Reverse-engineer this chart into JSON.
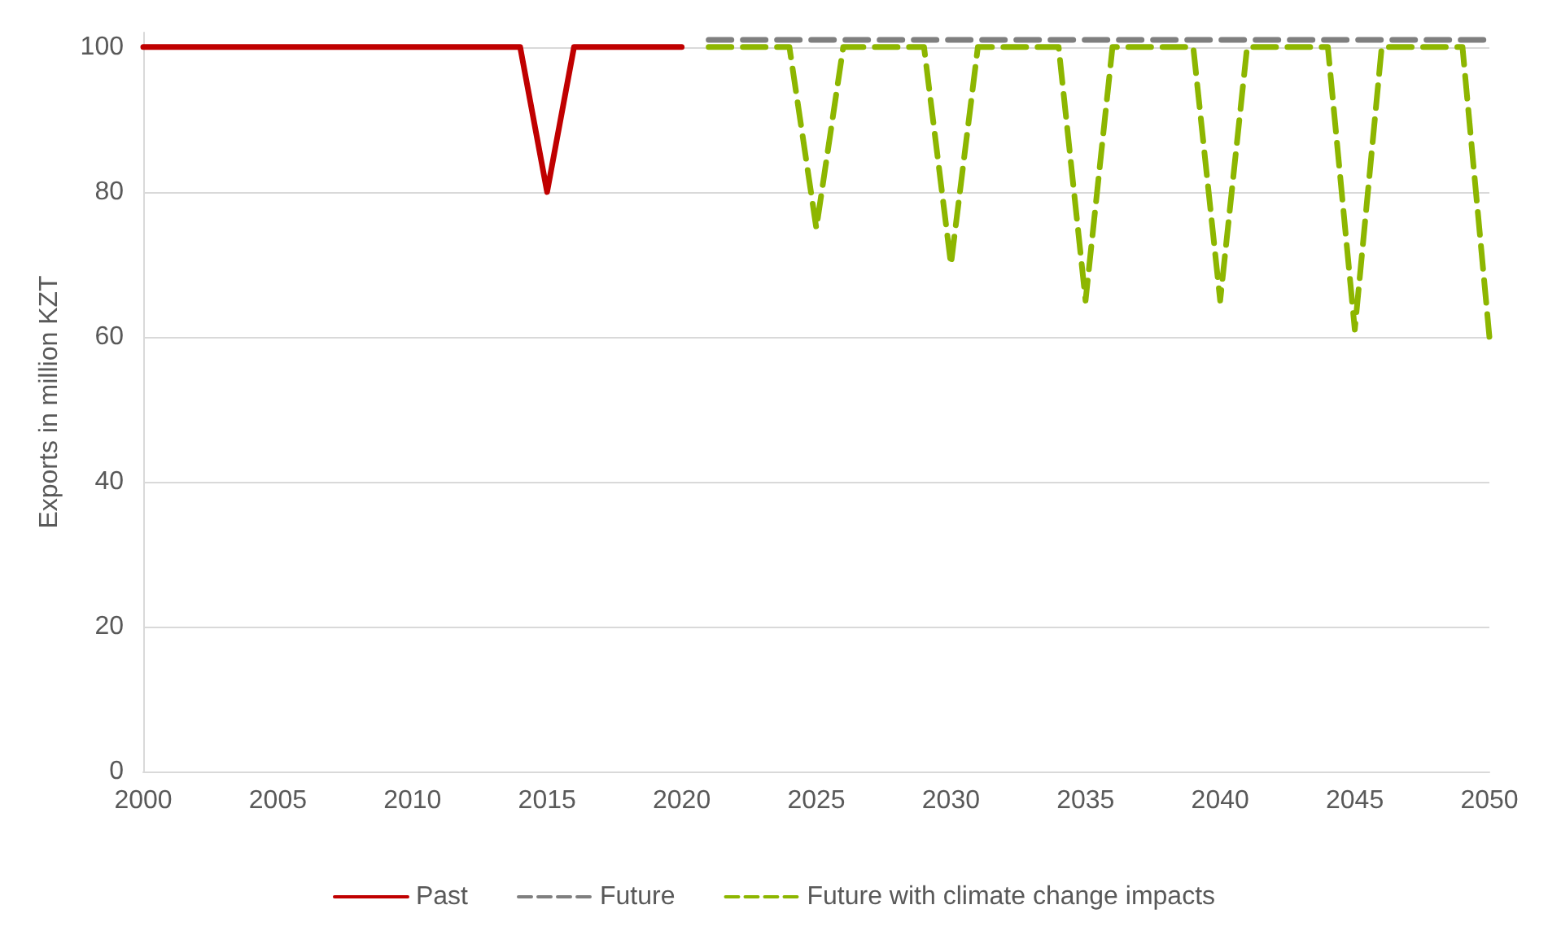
{
  "chart_data": {
    "type": "line",
    "ylabel": "Exports in million KZT",
    "xlim": [
      2000,
      2050
    ],
    "xticks": [
      2000,
      2005,
      2010,
      2015,
      2020,
      2025,
      2030,
      2035,
      2040,
      2045,
      2050
    ],
    "ylim": [
      0,
      102
    ],
    "yticks": [
      0,
      20,
      40,
      60,
      80,
      100
    ],
    "grid": "y",
    "legend": "bottom",
    "marker": "none",
    "series": [
      {
        "name": "Past",
        "color": "#c00000",
        "line_style": "solid",
        "x": [
          2000,
          2014,
          2015,
          2016,
          2020
        ],
        "values": [
          100,
          100,
          80,
          100,
          100
        ]
      },
      {
        "name": "Future",
        "color": "#7f7f7f",
        "line_style": "dashed",
        "x": [
          2021,
          2050
        ],
        "values": [
          101,
          101
        ]
      },
      {
        "name": "Future with climate change impacts",
        "color": "#8db600",
        "line_style": "dashed",
        "x": [
          2021,
          2024,
          2025,
          2026,
          2029,
          2030,
          2031,
          2034,
          2035,
          2036,
          2039,
          2040,
          2041,
          2044,
          2045,
          2046,
          2049,
          2050
        ],
        "values": [
          100,
          100,
          75,
          100,
          100,
          70,
          100,
          100,
          65,
          100,
          100,
          65,
          100,
          100,
          61,
          100,
          100,
          60
        ]
      }
    ]
  }
}
